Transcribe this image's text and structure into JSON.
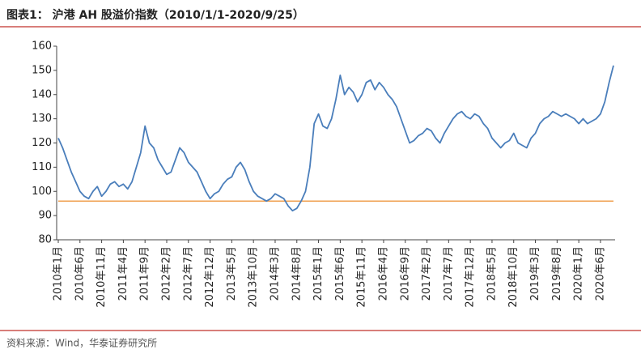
{
  "chart_data": {
    "type": "line",
    "title": "图表1：  沪港 AH 股溢价指数（2010/1/1-2020/9/25）",
    "source": "资料来源：Wind，华泰证券研究所",
    "categories": [
      "2010年1月",
      null,
      null,
      null,
      null,
      "2010年6月",
      null,
      null,
      null,
      null,
      "2010年11月",
      null,
      null,
      null,
      null,
      "2011年4月",
      null,
      null,
      null,
      null,
      "2011年9月",
      null,
      null,
      null,
      null,
      "2012年2月",
      null,
      null,
      null,
      null,
      "2012年7月",
      null,
      null,
      null,
      null,
      "2012年12月",
      null,
      null,
      null,
      null,
      "2013年5月",
      null,
      null,
      null,
      null,
      "2013年10月",
      null,
      null,
      null,
      null,
      "2014年3月",
      null,
      null,
      null,
      null,
      "2014年8月",
      null,
      null,
      null,
      null,
      "2015年1月",
      null,
      null,
      null,
      null,
      "2015年6月",
      null,
      null,
      null,
      null,
      "2015年11月",
      null,
      null,
      null,
      null,
      "2016年4月",
      null,
      null,
      null,
      null,
      "2016年9月",
      null,
      null,
      null,
      null,
      "2017年2月",
      null,
      null,
      null,
      null,
      "2017年7月",
      null,
      null,
      null,
      null,
      "2017年12月",
      null,
      null,
      null,
      null,
      "2018年5月",
      null,
      null,
      null,
      null,
      "2018年10月",
      null,
      null,
      null,
      null,
      "2019年3月",
      null,
      null,
      null,
      null,
      "2019年8月",
      null,
      null,
      null,
      null,
      "2020年1月",
      null,
      null,
      null,
      null,
      "2020年6月",
      null,
      null,
      null
    ],
    "series": [
      {
        "name": "沪港 AH 股溢价指数",
        "color": "#4a7ebb",
        "values": [
          122,
          118,
          113,
          108,
          104,
          100,
          98,
          97,
          100,
          102,
          98,
          100,
          103,
          104,
          102,
          103,
          101,
          104,
          110,
          116,
          127,
          120,
          118,
          113,
          110,
          107,
          108,
          113,
          118,
          116,
          112,
          110,
          108,
          104,
          100,
          97,
          99,
          100,
          103,
          105,
          106,
          110,
          112,
          109,
          104,
          100,
          98,
          97,
          96,
          97,
          99,
          98,
          97,
          94,
          92,
          93,
          96,
          100,
          110,
          128,
          132,
          127,
          126,
          130,
          138,
          148,
          140,
          143,
          141,
          137,
          140,
          145,
          146,
          142,
          145,
          143,
          140,
          138,
          135,
          130,
          125,
          120,
          121,
          123,
          124,
          126,
          125,
          122,
          120,
          124,
          127,
          130,
          132,
          133,
          131,
          130,
          132,
          131,
          128,
          126,
          122,
          120,
          118,
          120,
          121,
          124,
          120,
          119,
          118,
          122,
          124,
          128,
          130,
          131,
          133,
          132,
          131,
          132,
          131,
          130,
          128,
          130,
          128,
          129,
          130,
          132,
          137,
          145,
          152
        ]
      }
    ],
    "reference_line": {
      "value": 96,
      "color": "#f0a050"
    },
    "ylim": [
      80,
      160
    ],
    "yticks": [
      80,
      90,
      100,
      110,
      120,
      130,
      140,
      150,
      160
    ],
    "grid": false,
    "legend": false
  }
}
